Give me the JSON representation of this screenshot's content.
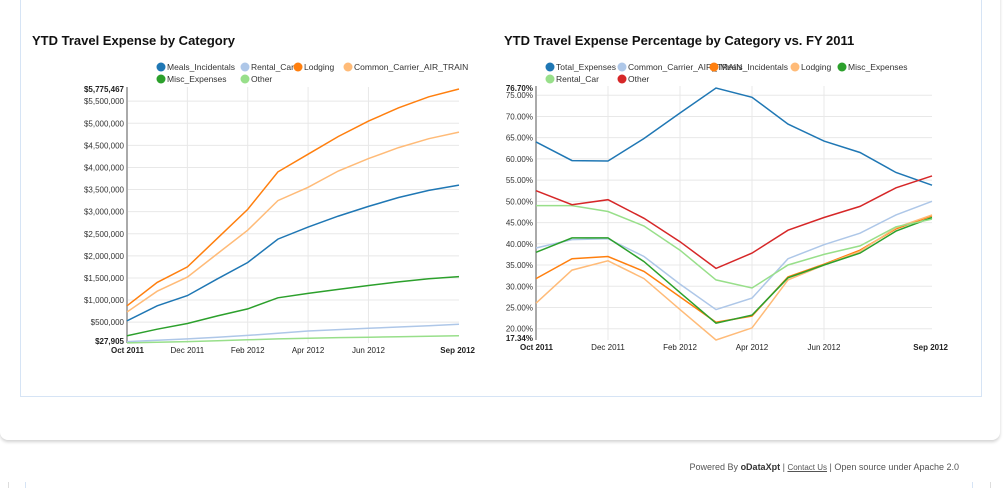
{
  "charts": [
    {
      "title": "YTD Travel Expense by Category",
      "type": "line",
      "chart_data": {
        "type": "line",
        "title": "YTD Travel Expense by Category",
        "xlabel": "",
        "ylabel": "",
        "x": [
          "Oct 2011",
          "Nov 2011",
          "Dec 2011",
          "Jan 2012",
          "Feb 2012",
          "Mar 2012",
          "Apr 2012",
          "May 2012",
          "Jun 2012",
          "Jul 2012",
          "Aug 2012",
          "Sep 2012"
        ],
        "x_tick_labels": [
          "Oct 2011",
          "Dec 2011",
          "Feb 2012",
          "Apr 2012",
          "Jun 2012",
          "Sep 2012"
        ],
        "ylim": [
          27905,
          5775467
        ],
        "y_tick_labels": [
          "$27,905",
          "$500,000",
          "$1,000,000",
          "$1,500,000",
          "$2,000,000",
          "$2,500,000",
          "$3,000,000",
          "$3,500,000",
          "$4,000,000",
          "$4,500,000",
          "$5,000,000",
          "$5,500,000",
          "$5,775,467"
        ],
        "y_ticks": [
          500000,
          1000000,
          1500000,
          2000000,
          2500000,
          3000000,
          3500000,
          4000000,
          4500000,
          5000000,
          5500000
        ],
        "grid": true,
        "legend_position": "top",
        "series": [
          {
            "name": "Meals_Incidentals",
            "color": "#1f77b4",
            "values": [
              530000,
              870000,
              1100000,
              1480000,
              1850000,
              2380000,
              2650000,
              2900000,
              3120000,
              3320000,
              3480000,
              3600000
            ]
          },
          {
            "name": "Rental_Car",
            "color": "#aec7e8",
            "values": [
              60000,
              90000,
              120000,
              160000,
              200000,
              250000,
              300000,
              330000,
              360000,
              390000,
              420000,
              450000
            ]
          },
          {
            "name": "Lodging",
            "color": "#ff7f0e",
            "values": [
              870000,
              1400000,
              1750000,
              2400000,
              3050000,
              3900000,
              4300000,
              4700000,
              5050000,
              5350000,
              5600000,
              5775467
            ]
          },
          {
            "name": "Common_Carrier_AIR_TRAIN",
            "color": "#ffbb78",
            "values": [
              730000,
              1200000,
              1520000,
              2050000,
              2580000,
              3250000,
              3550000,
              3920000,
              4200000,
              4450000,
              4650000,
              4800000
            ]
          },
          {
            "name": "Misc_Expenses",
            "color": "#2ca02c",
            "values": [
              190000,
              340000,
              470000,
              640000,
              800000,
              1050000,
              1150000,
              1240000,
              1330000,
              1410000,
              1480000,
              1530000
            ]
          },
          {
            "name": "Other",
            "color": "#98df8a",
            "values": [
              30000,
              45000,
              60000,
              80000,
              100000,
              120000,
              135000,
              150000,
              160000,
              170000,
              180000,
              190000
            ]
          }
        ]
      }
    },
    {
      "title": "YTD Travel Expense Percentage by Category vs. FY 2011",
      "type": "line",
      "chart_data": {
        "type": "line",
        "title": "YTD Travel Expense Percentage by Category vs. FY 2011",
        "xlabel": "",
        "ylabel": "",
        "x": [
          "Oct 2011",
          "Nov 2011",
          "Dec 2011",
          "Jan 2012",
          "Feb 2012",
          "Mar 2012",
          "Apr 2012",
          "May 2012",
          "Jun 2012",
          "Jul 2012",
          "Aug 2012",
          "Sep 2012"
        ],
        "x_tick_labels": [
          "Oct 2011",
          "Dec 2011",
          "Feb 2012",
          "Apr 2012",
          "Jun 2012",
          "Sep 2012"
        ],
        "ylim": [
          17.34,
          76.7
        ],
        "y_tick_labels": [
          "17.34%",
          "20.00%",
          "25.00%",
          "30.00%",
          "35.00%",
          "40.00%",
          "45.00%",
          "50.00%",
          "55.00%",
          "60.00%",
          "65.00%",
          "70.00%",
          "75.00%",
          "76.70%"
        ],
        "y_ticks": [
          20,
          25,
          30,
          35,
          40,
          45,
          50,
          55,
          60,
          65,
          70,
          75
        ],
        "grid": true,
        "legend_position": "top",
        "series": [
          {
            "name": "Total_Expenses",
            "color": "#1f77b4",
            "values": [
              64.0,
              59.6,
              59.5,
              64.8,
              70.8,
              76.7,
              74.5,
              68.2,
              64.2,
              61.5,
              56.8,
              53.8
            ]
          },
          {
            "name": "Common_Carrier_AIR_TRAIN",
            "color": "#aec7e8",
            "values": [
              39.0,
              41.0,
              41.2,
              37.0,
              30.5,
              24.5,
              27.2,
              36.5,
              39.8,
              42.5,
              46.8,
              50.0
            ]
          },
          {
            "name": "Meals_Incidentals",
            "color": "#ff7f0e",
            "values": [
              31.8,
              36.5,
              37.0,
              33.5,
              27.5,
              21.5,
              23.0,
              32.2,
              35.2,
              38.5,
              43.5,
              46.6
            ]
          },
          {
            "name": "Lodging",
            "color": "#ffbb78",
            "values": [
              26.0,
              33.8,
              36.0,
              31.8,
              24.5,
              17.34,
              20.2,
              31.5,
              35.0,
              38.2,
              43.8,
              46.8
            ]
          },
          {
            "name": "Misc_Expenses",
            "color": "#2ca02c",
            "values": [
              38.0,
              41.4,
              41.4,
              35.8,
              28.5,
              21.3,
              23.2,
              32.0,
              35.0,
              37.8,
              43.0,
              46.2
            ]
          },
          {
            "name": "Rental_Car",
            "color": "#98df8a",
            "values": [
              49.0,
              49.0,
              47.6,
              44.2,
              38.5,
              31.5,
              29.6,
              35.0,
              37.5,
              39.5,
              44.0,
              45.8
            ]
          },
          {
            "name": "Other",
            "color": "#d62728",
            "values": [
              52.5,
              49.2,
              50.4,
              46.0,
              40.5,
              34.2,
              37.8,
              43.2,
              46.2,
              48.8,
              53.2,
              56.0
            ]
          }
        ]
      }
    }
  ],
  "footer": {
    "powered_by": "Powered By",
    "brand": "oDataXpt",
    "separator": "|",
    "contact_label": "Contact Us",
    "license": "Open source under Apache 2.0"
  }
}
